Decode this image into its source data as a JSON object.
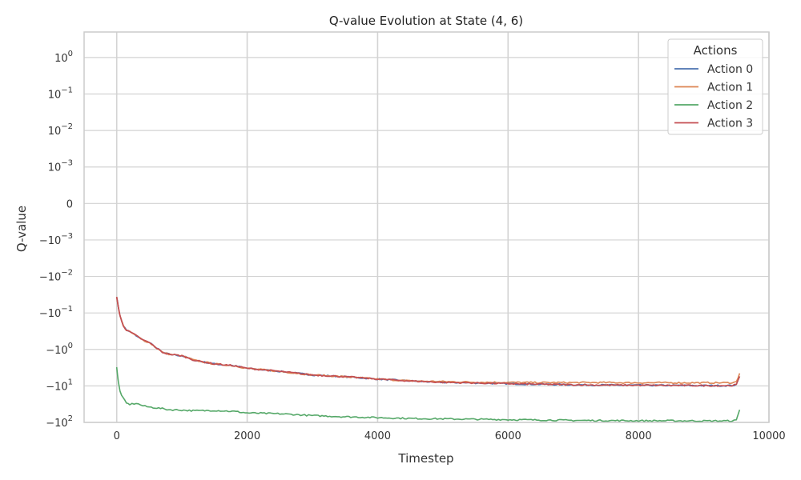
{
  "chart_data": {
    "type": "line",
    "title": "Q-value Evolution at State (4, 6)",
    "xlabel": "Timestep",
    "ylabel": "Q-value",
    "xlim": [
      -500,
      10000
    ],
    "x_ticks": [
      0,
      2000,
      4000,
      6000,
      8000,
      10000
    ],
    "x_tick_labels": [
      "0",
      "2000",
      "4000",
      "6000",
      "8000",
      "10000"
    ],
    "y_scale": "symlog",
    "y_linthresh": 0.001,
    "ylim": [
      -100,
      5
    ],
    "y_ticks": [
      1,
      0.1,
      0.01,
      0.001,
      0,
      -0.001,
      -0.01,
      -0.1,
      -1,
      -10,
      -100
    ],
    "y_tick_labels": [
      {
        "base": "10",
        "exp": "0",
        "sign": ""
      },
      {
        "base": "10",
        "exp": "−1",
        "sign": ""
      },
      {
        "base": "10",
        "exp": "−2",
        "sign": ""
      },
      {
        "base": "10",
        "exp": "−3",
        "sign": ""
      },
      {
        "base": "0",
        "exp": "",
        "sign": ""
      },
      {
        "base": "10",
        "exp": "−3",
        "sign": "−"
      },
      {
        "base": "10",
        "exp": "−2",
        "sign": "−"
      },
      {
        "base": "10",
        "exp": "−1",
        "sign": "−"
      },
      {
        "base": "10",
        "exp": "0",
        "sign": "−"
      },
      {
        "base": "10",
        "exp": "1",
        "sign": "−"
      },
      {
        "base": "10",
        "exp": "2",
        "sign": "−"
      }
    ],
    "grid": true,
    "legend": {
      "title": "Actions",
      "position": "top-right"
    },
    "x": [
      0,
      25,
      50,
      100,
      150,
      200,
      300,
      400,
      500,
      700,
      800,
      1000,
      1200,
      1500,
      1800,
      2000,
      2500,
      3000,
      3500,
      4000,
      4500,
      5000,
      5500,
      6000,
      6500,
      7000,
      7500,
      8000,
      8500,
      9000,
      9400,
      9500,
      9550
    ],
    "series": [
      {
        "name": "Action 0",
        "color": "#4c72b0",
        "values": [
          -0.035,
          -0.07,
          -0.12,
          -0.22,
          -0.3,
          -0.33,
          -0.42,
          -0.55,
          -0.65,
          -1.2,
          -1.35,
          -1.5,
          -2.0,
          -2.5,
          -2.8,
          -3.3,
          -4.0,
          -5.0,
          -5.6,
          -6.5,
          -7.3,
          -8.0,
          -8.3,
          -8.7,
          -9.0,
          -9.3,
          -9.5,
          -9.6,
          -9.7,
          -9.8,
          -9.8,
          -9.4,
          -5.5
        ]
      },
      {
        "name": "Action 1",
        "color": "#dd8452",
        "values": [
          -0.035,
          -0.07,
          -0.12,
          -0.22,
          -0.3,
          -0.33,
          -0.42,
          -0.55,
          -0.65,
          -1.2,
          -1.35,
          -1.5,
          -2.0,
          -2.5,
          -2.8,
          -3.3,
          -4.0,
          -5.0,
          -5.6,
          -6.5,
          -7.3,
          -7.6,
          -7.9,
          -8.0,
          -8.1,
          -8.1,
          -8.1,
          -8.2,
          -8.2,
          -8.2,
          -8.2,
          -7.8,
          -4.5
        ]
      },
      {
        "name": "Action 2",
        "color": "#55a868",
        "values": [
          -3.0,
          -8.0,
          -14.0,
          -22.0,
          -30.0,
          -32.0,
          -30.0,
          -35.0,
          -38.0,
          -42.0,
          -45.0,
          -46.0,
          -48.0,
          -47.0,
          -50.0,
          -55.0,
          -58.0,
          -65.0,
          -70.0,
          -74.0,
          -78.0,
          -80.0,
          -82.0,
          -84.0,
          -86.0,
          -88.0,
          -89.0,
          -90.0,
          -90.0,
          -91.0,
          -91.0,
          -88.0,
          -45.0
        ]
      },
      {
        "name": "Action 3",
        "color": "#c44e52",
        "values": [
          -0.035,
          -0.07,
          -0.12,
          -0.22,
          -0.3,
          -0.33,
          -0.42,
          -0.55,
          -0.65,
          -1.2,
          -1.35,
          -1.5,
          -2.0,
          -2.5,
          -2.8,
          -3.3,
          -4.0,
          -5.0,
          -5.6,
          -6.5,
          -7.3,
          -8.0,
          -8.3,
          -8.7,
          -9.0,
          -9.3,
          -9.5,
          -9.6,
          -9.7,
          -9.8,
          -9.8,
          -9.4,
          -5.5
        ]
      }
    ]
  }
}
